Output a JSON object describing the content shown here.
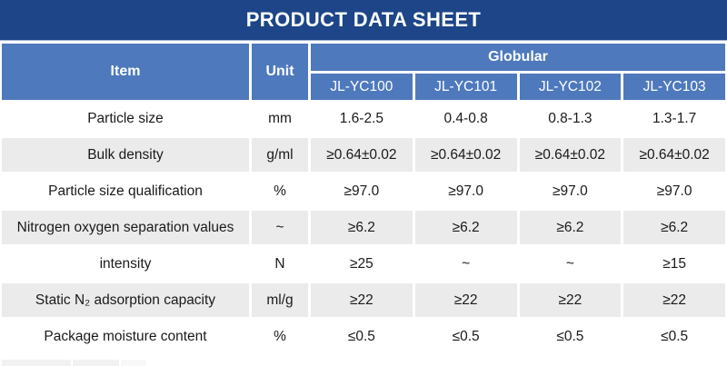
{
  "title": "PRODUCT DATA SHEET",
  "table": {
    "item_header": "Item",
    "unit_header": "Unit",
    "group_header": "Globular",
    "models": [
      "JL-YC100",
      "JL-YC101",
      "JL-YC102",
      "JL-YC103"
    ],
    "rows": [
      {
        "item": "Particle size",
        "unit": "mm",
        "values": [
          "1.6-2.5",
          "0.4-0.8",
          "0.8-1.3",
          "1.3-1.7"
        ]
      },
      {
        "item": "Bulk density",
        "unit": "g/ml",
        "values": [
          "≥0.64±0.02",
          "≥0.64±0.02",
          "≥0.64±0.02",
          "≥0.64±0.02"
        ]
      },
      {
        "item": "Particle size qualification",
        "unit": "%",
        "values": [
          "≥97.0",
          "≥97.0",
          "≥97.0",
          "≥97.0"
        ]
      },
      {
        "item": "Nitrogen oxygen separation values",
        "unit": "~",
        "values": [
          "≥6.2",
          "≥6.2",
          "≥6.2",
          "≥6.2"
        ]
      },
      {
        "item": "intensity",
        "unit": "N",
        "values": [
          "≥25",
          "~",
          "~",
          "≥15"
        ]
      },
      {
        "item": "Static N₂ adsorption capacity",
        "unit": "ml/g",
        "values": [
          "≥22",
          "≥22",
          "≥22",
          "≥22"
        ]
      },
      {
        "item": "Package moisture content",
        "unit": "%",
        "values": [
          "≤0.5",
          "≤0.5",
          "≤0.5",
          "≤0.5"
        ]
      }
    ]
  },
  "colors": {
    "banner": "#1D4588",
    "header": "#4E79BD",
    "row_alt": "#EBEBEB",
    "text": "#1A1A1A",
    "rule": "#A9B8D6"
  }
}
